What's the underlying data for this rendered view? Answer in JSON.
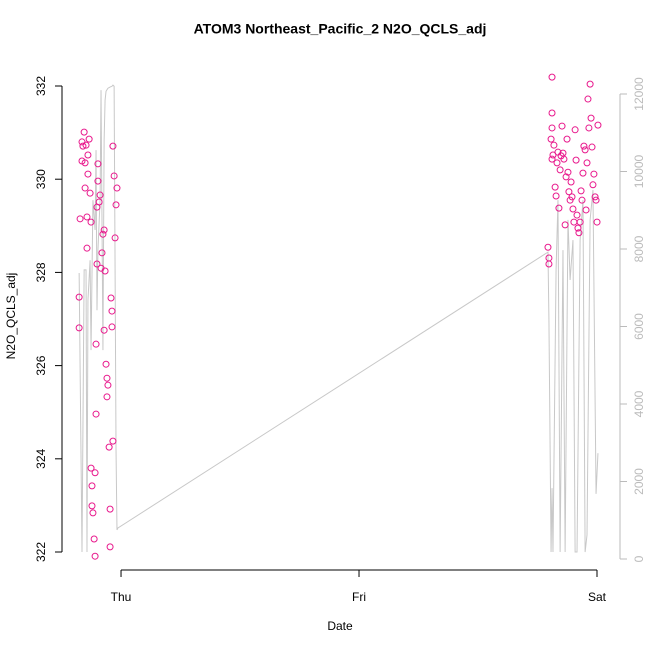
{
  "chart_data": {
    "type": "scatter",
    "title": "ATOM3 Northeast_Pacific_2 N2O_QCLS_adj",
    "xlabel": "Date",
    "ylabel": "N2O_QCLS_adj",
    "xlim": [
      -0.206,
      2.063
    ],
    "ylim": [
      321.614,
      332.515
    ],
    "y2lim": [
      -284,
      12826
    ],
    "xticks": [
      {
        "value": 0,
        "label": "Thu"
      },
      {
        "value": 1,
        "label": "Fri"
      },
      {
        "value": 2,
        "label": "Sat"
      }
    ],
    "yticks": [
      322,
      324,
      326,
      328,
      330,
      332
    ],
    "y2ticks": [
      0,
      2000,
      4000,
      6000,
      8000,
      10000,
      12000
    ],
    "series": [
      {
        "type": "scatter",
        "color": "#e8188c",
        "x": [
          -0.176,
          -0.176,
          -0.172,
          -0.164,
          -0.164,
          -0.16,
          -0.155,
          -0.151,
          -0.151,
          -0.147,
          -0.143,
          -0.143,
          -0.139,
          -0.139,
          -0.134,
          -0.13,
          -0.126,
          -0.126,
          -0.122,
          -0.122,
          -0.118,
          -0.113,
          -0.109,
          -0.109,
          -0.105,
          -0.105,
          -0.101,
          -0.101,
          -0.097,
          -0.097,
          -0.092,
          -0.088,
          -0.084,
          -0.08,
          -0.076,
          -0.071,
          -0.071,
          -0.067,
          -0.063,
          -0.059,
          -0.059,
          -0.055,
          -0.05,
          -0.046,
          -0.046,
          -0.042,
          -0.038,
          -0.038,
          -0.034,
          -0.034,
          -0.029,
          -0.025,
          -0.021,
          -0.017,
          1.794,
          1.798,
          1.798,
          1.811,
          1.811,
          1.811,
          1.807,
          1.811,
          1.815,
          1.819,
          1.824,
          1.828,
          1.832,
          1.836,
          1.84,
          1.845,
          1.849,
          1.853,
          1.857,
          1.861,
          1.866,
          1.87,
          1.874,
          1.878,
          1.882,
          1.887,
          1.891,
          1.895,
          1.899,
          1.903,
          1.908,
          1.912,
          1.916,
          1.92,
          1.924,
          1.929,
          1.933,
          1.937,
          1.941,
          1.945,
          1.95,
          1.954,
          1.958,
          1.962,
          1.966,
          1.971,
          1.975,
          1.979,
          1.983,
          1.987,
          1.992,
          1.996,
          2.0,
          2.004
        ],
        "values": [
          327.47,
          326.81,
          329.15,
          330.39,
          330.8,
          330.71,
          331.01,
          329.81,
          330.35,
          330.73,
          329.19,
          328.52,
          330.52,
          330.11,
          330.86,
          329.7,
          329.08,
          323.8,
          323.42,
          322.99,
          322.84,
          322.28,
          321.91,
          323.7,
          324.96,
          326.46,
          328.18,
          329.4,
          329.96,
          330.33,
          329.51,
          329.66,
          328.09,
          328.42,
          328.82,
          328.91,
          326.76,
          328.03,
          326.03,
          325.73,
          325.33,
          325.58,
          324.25,
          322.92,
          322.11,
          327.45,
          327.17,
          326.83,
          324.38,
          330.71,
          330.07,
          328.74,
          329.45,
          329.81,
          328.54,
          328.31,
          328.18,
          332.19,
          331.42,
          331.1,
          330.86,
          330.43,
          330.52,
          330.73,
          329.83,
          329.64,
          330.35,
          330.58,
          329.38,
          330.2,
          330.5,
          331.14,
          330.56,
          330.43,
          329.02,
          330.05,
          330.86,
          330.15,
          329.73,
          329.55,
          329.94,
          329.62,
          329.36,
          329.08,
          331.06,
          330.41,
          329.23,
          328.95,
          328.85,
          329.08,
          329.75,
          329.55,
          330.13,
          330.71,
          330.63,
          329.34,
          330.35,
          331.72,
          331.1,
          332.04,
          331.31,
          330.69,
          329.88,
          330.11,
          329.62,
          329.55,
          329.08,
          331.16
        ]
      },
      {
        "type": "line",
        "axis": "y2",
        "color": "#c8c8c8",
        "x": [
          -0.176,
          -0.164,
          -0.155,
          -0.147,
          -0.143,
          -0.139,
          -0.13,
          -0.126,
          -0.118,
          -0.109,
          -0.105,
          -0.101,
          -0.097,
          -0.088,
          -0.084,
          -0.076,
          -0.071,
          -0.067,
          -0.063,
          -0.055,
          -0.046,
          -0.038,
          -0.034,
          -0.029,
          -0.021,
          -0.017,
          -0.013,
          1.794,
          1.798,
          1.807,
          1.811,
          1.815,
          1.828,
          1.836,
          1.845,
          1.857,
          1.866,
          1.878,
          1.887,
          1.899,
          1.908,
          1.916,
          1.929,
          1.941,
          1.95,
          1.958,
          1.971,
          1.983,
          1.996,
          2.004
        ],
        "values": [
          7380,
          180,
          7460,
          7460,
          180,
          6680,
          7710,
          5390,
          9260,
          8490,
          10550,
          6420,
          7970,
          9260,
          12100,
          5390,
          10810,
          11840,
          12070,
          12150,
          12180,
          12200,
          12230,
          12200,
          2810,
          750,
          800,
          7920,
          6170,
          180,
          1830,
          180,
          7460,
          9260,
          180,
          7970,
          180,
          8750,
          7200,
          8230,
          180,
          180,
          8230,
          9260,
          180,
          620,
          8750,
          9520,
          1680,
          2730
        ]
      }
    ]
  }
}
